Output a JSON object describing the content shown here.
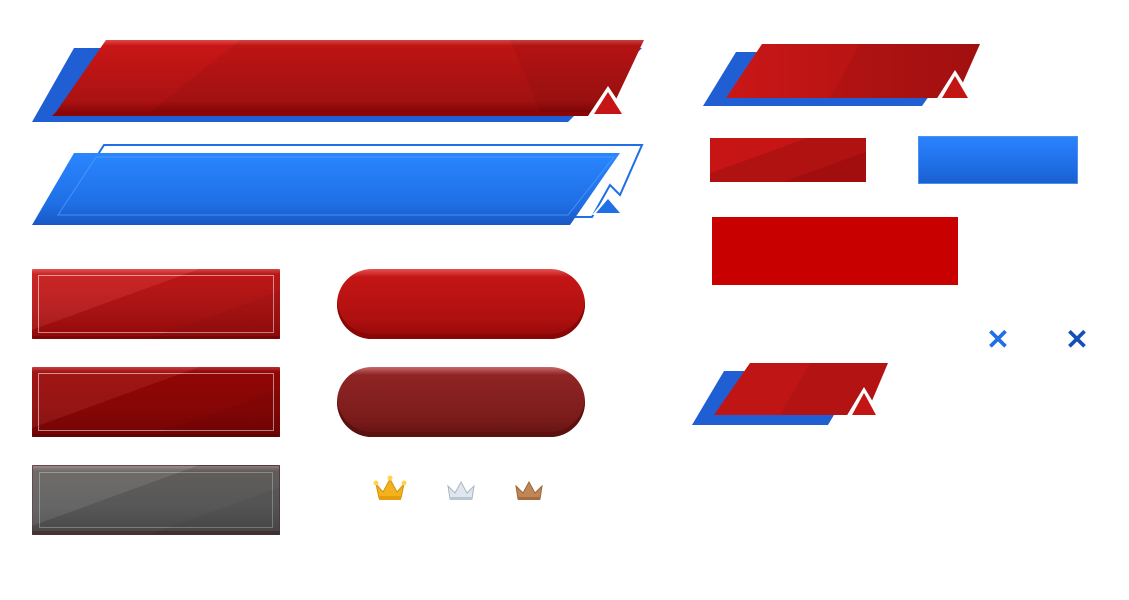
{
  "theme": {
    "red": "#c81818",
    "dark_red": "#8e0606",
    "blue": "#1f6fe6",
    "gray": "#5c5c5c",
    "gold": "#f2b21c",
    "silver": "#cfd8e3",
    "bronze": "#b97c4e"
  },
  "icons": {
    "crowns": [
      "gold-crown-icon",
      "silver-crown-icon",
      "bronze-crown-icon"
    ],
    "close_icons": [
      "close-icon",
      "close-icon"
    ],
    "close_glyph": "✕"
  },
  "elements": [
    "large-red-banner",
    "large-blue-banner",
    "red-rect-button",
    "red-pill-button",
    "dark-red-rect-button",
    "dark-red-pill-button",
    "gray-rect-button",
    "small-red-banner",
    "red-tag-panel",
    "blue-tag-panel",
    "solid-red-panel",
    "compact-red-banner"
  ]
}
